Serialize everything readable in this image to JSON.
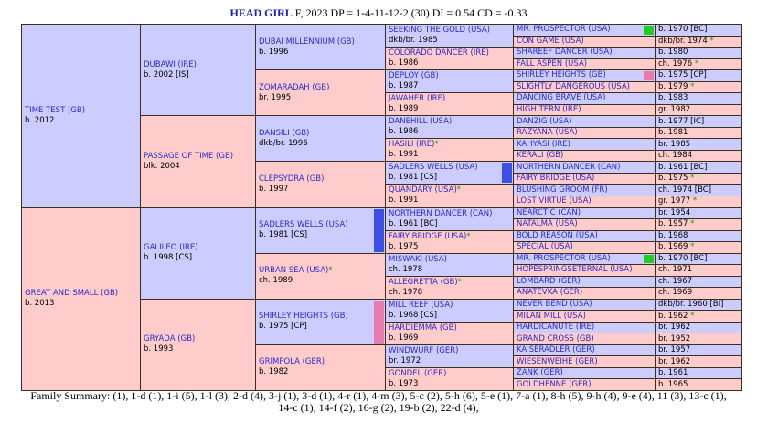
{
  "header": {
    "name": "HEAD GIRL",
    "details": "F, 2023 DP = 1-4-11-12-2 (30) DI = 0.54   CD = -0.33"
  },
  "generations": [
    [
      {
        "name": "TIME TEST (GB)",
        "info": "b. 2012"
      },
      {
        "name": "GREAT AND SMALL (GB)",
        "info": "b. 2013"
      }
    ],
    [
      {
        "name": "DUBAWI (IRE)",
        "info": "b. 2002 [IS]"
      },
      {
        "name": "PASSAGE OF TIME (GB)",
        "info": "blk. 2004"
      },
      {
        "name": "GALILEO (IRE)",
        "info": "b. 1998 [CS]"
      },
      {
        "name": "GRYADA (GB)",
        "info": "b. 1993"
      }
    ],
    [
      {
        "name": "DUBAI MILLENNIUM (GB)",
        "info": "b. 1996"
      },
      {
        "name": "ZOMARADAH (GB)",
        "info": "br. 1995"
      },
      {
        "name": "DANSILI (GB)",
        "info": "dkb/br. 1996"
      },
      {
        "name": "CLEPSYDRA (GB)",
        "info": "b. 1997"
      },
      {
        "name": "SADLERS WELLS (USA)",
        "info": "b. 1981 [CS]",
        "bar": "#3b4ee8"
      },
      {
        "name": "URBAN SEA (USA)",
        "mark": "*",
        "info": "ch. 1989"
      },
      {
        "name": "SHIRLEY HEIGHTS (GB)",
        "info": "b. 1975 [CP]",
        "bar": "#e87aae"
      },
      {
        "name": "GRIMPOLA (GER)",
        "info": "b. 1982"
      }
    ],
    [
      {
        "name": "SEEKING THE GOLD (USA)",
        "info": "dkb/br. 1985"
      },
      {
        "name": "COLORADO DANCER (IRE)",
        "info": "b. 1986"
      },
      {
        "name": "DEPLOY (GB)",
        "info": "b. 1987"
      },
      {
        "name": "JAWAHER (IRE)",
        "info": "b. 1989"
      },
      {
        "name": "DANEHILL (USA)",
        "info": "b. 1986"
      },
      {
        "name": "HASILI (IRE)",
        "mark": "*",
        "info": "b. 1991"
      },
      {
        "name": "SADLERS WELLS (USA)",
        "info": "b. 1981 [CS]",
        "bar": "#3b4ee8"
      },
      {
        "name": "QUANDARY (USA)",
        "mark": "*",
        "info": "b. 1991"
      },
      {
        "name": "NORTHERN DANCER (CAN)",
        "info": "b. 1961 [BC]"
      },
      {
        "name": "FAIRY BRIDGE (USA)",
        "mark": "*",
        "info": "b. 1975"
      },
      {
        "name": "MISWAKI (USA)",
        "info": "ch. 1978"
      },
      {
        "name": "ALLEGRETTA (GB)",
        "mark": "*",
        "info": "ch. 1978"
      },
      {
        "name": "MILL REEF (USA)",
        "info": "b. 1968 [CS]"
      },
      {
        "name": "HARDIEMMA (GB)",
        "info": "b. 1969"
      },
      {
        "name": "WINDWURF (GER)",
        "info": "br. 1972"
      },
      {
        "name": "GONDEL (GER)",
        "info": "b. 1973"
      }
    ],
    [
      {
        "name": "MR. PROSPECTOR (USA)",
        "info": "b. 1970 [BC]",
        "bar": "#22cc22"
      },
      {
        "name": "CON GAME (USA)",
        "info": "dkb/br. 1974",
        "mark": "*"
      },
      {
        "name": "SHAREEF DANCER (USA)",
        "info": "b. 1980"
      },
      {
        "name": "FALL ASPEN (USA)",
        "info": "ch. 1976",
        "mark": "*"
      },
      {
        "name": "SHIRLEY HEIGHTS (GB)",
        "info": "b. 1975 [CP]",
        "bar": "#e87aae"
      },
      {
        "name": "SLIGHTLY DANGEROUS (USA)",
        "info": "b. 1979",
        "mark": "*"
      },
      {
        "name": "DANCING BRAVE (USA)",
        "info": "b. 1983"
      },
      {
        "name": "HIGH TERN (IRE)",
        "info": "gr. 1982"
      },
      {
        "name": "DANZIG (USA)",
        "info": "b. 1977 [IC]"
      },
      {
        "name": "RAZYANA (USA)",
        "info": "b. 1981"
      },
      {
        "name": "KAHYASI (IRE)",
        "info": "br. 1985"
      },
      {
        "name": "KERALI (GB)",
        "info": "ch. 1984"
      },
      {
        "name": "NORTHERN DANCER (CAN)",
        "info": "b. 1961 [BC]"
      },
      {
        "name": "FAIRY BRIDGE (USA)",
        "info": "b. 1975",
        "mark": "*"
      },
      {
        "name": "BLUSHING GROOM (FR)",
        "info": "ch. 1974 [BC]"
      },
      {
        "name": "LOST VIRTUE (USA)",
        "info": "gr. 1977",
        "mark": "*"
      },
      {
        "name": "NEARCTIC (CAN)",
        "info": "br. 1954"
      },
      {
        "name": "NATALMA (USA)",
        "info": "b. 1957",
        "mark": "*"
      },
      {
        "name": "BOLD REASON (USA)",
        "info": "b. 1968"
      },
      {
        "name": "SPECIAL (USA)",
        "info": "b. 1969",
        "mark": "*"
      },
      {
        "name": "MR. PROSPECTOR (USA)",
        "info": "b. 1970 [BC]",
        "bar": "#22cc22"
      },
      {
        "name": "HOPESPRINGSETERNAL (USA)",
        "info": "ch. 1971"
      },
      {
        "name": "LOMBARD (GER)",
        "info": "ch. 1967"
      },
      {
        "name": "ANATEVKA (GER)",
        "info": "ch. 1969"
      },
      {
        "name": "NEVER BEND (USA)",
        "info": "dkb/br. 1960 [BI]"
      },
      {
        "name": "MILAN MILL (USA)",
        "info": "b. 1962",
        "mark": "*"
      },
      {
        "name": "HARDICANUTE (IRE)",
        "info": "br. 1962"
      },
      {
        "name": "GRAND CROSS (GB)",
        "info": "br. 1952"
      },
      {
        "name": "KAISERADLER (GER)",
        "info": "br. 1957"
      },
      {
        "name": "WIESENWEIHE (GER)",
        "info": "br. 1962"
      },
      {
        "name": "ZANK (GER)",
        "info": "b. 1961"
      },
      {
        "name": "GOLDHENNE (GER)",
        "info": "b. 1965"
      }
    ]
  ],
  "footer": "Family Summary: (1), 1-d (1), 1-i (5), 1-l (3), 2-d (4), 3-j (1), 3-d (1), 4-r (1), 4-m (3), 5-c (2), 5-h (6), 5-e (1), 7-a (1), 8-h (5), 9-h (4), 9-e (4), 11 (3), 13-c (1), 14-c (1), 14-f (2), 16-g (2), 19-b (2), 22-d (4),"
}
